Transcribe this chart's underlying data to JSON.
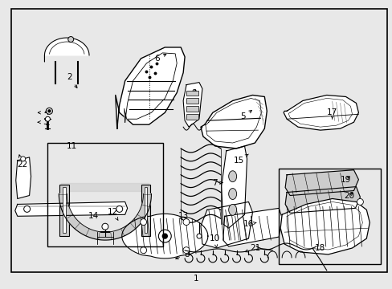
{
  "bg_color": "#e8e8e8",
  "line_color": "#000000",
  "white": "#ffffff",
  "gray_light": "#cccccc",
  "gray_mid": "#aaaaaa",
  "figsize": [
    4.89,
    3.6
  ],
  "dpi": 100,
  "border": [
    12,
    10,
    472,
    330
  ]
}
